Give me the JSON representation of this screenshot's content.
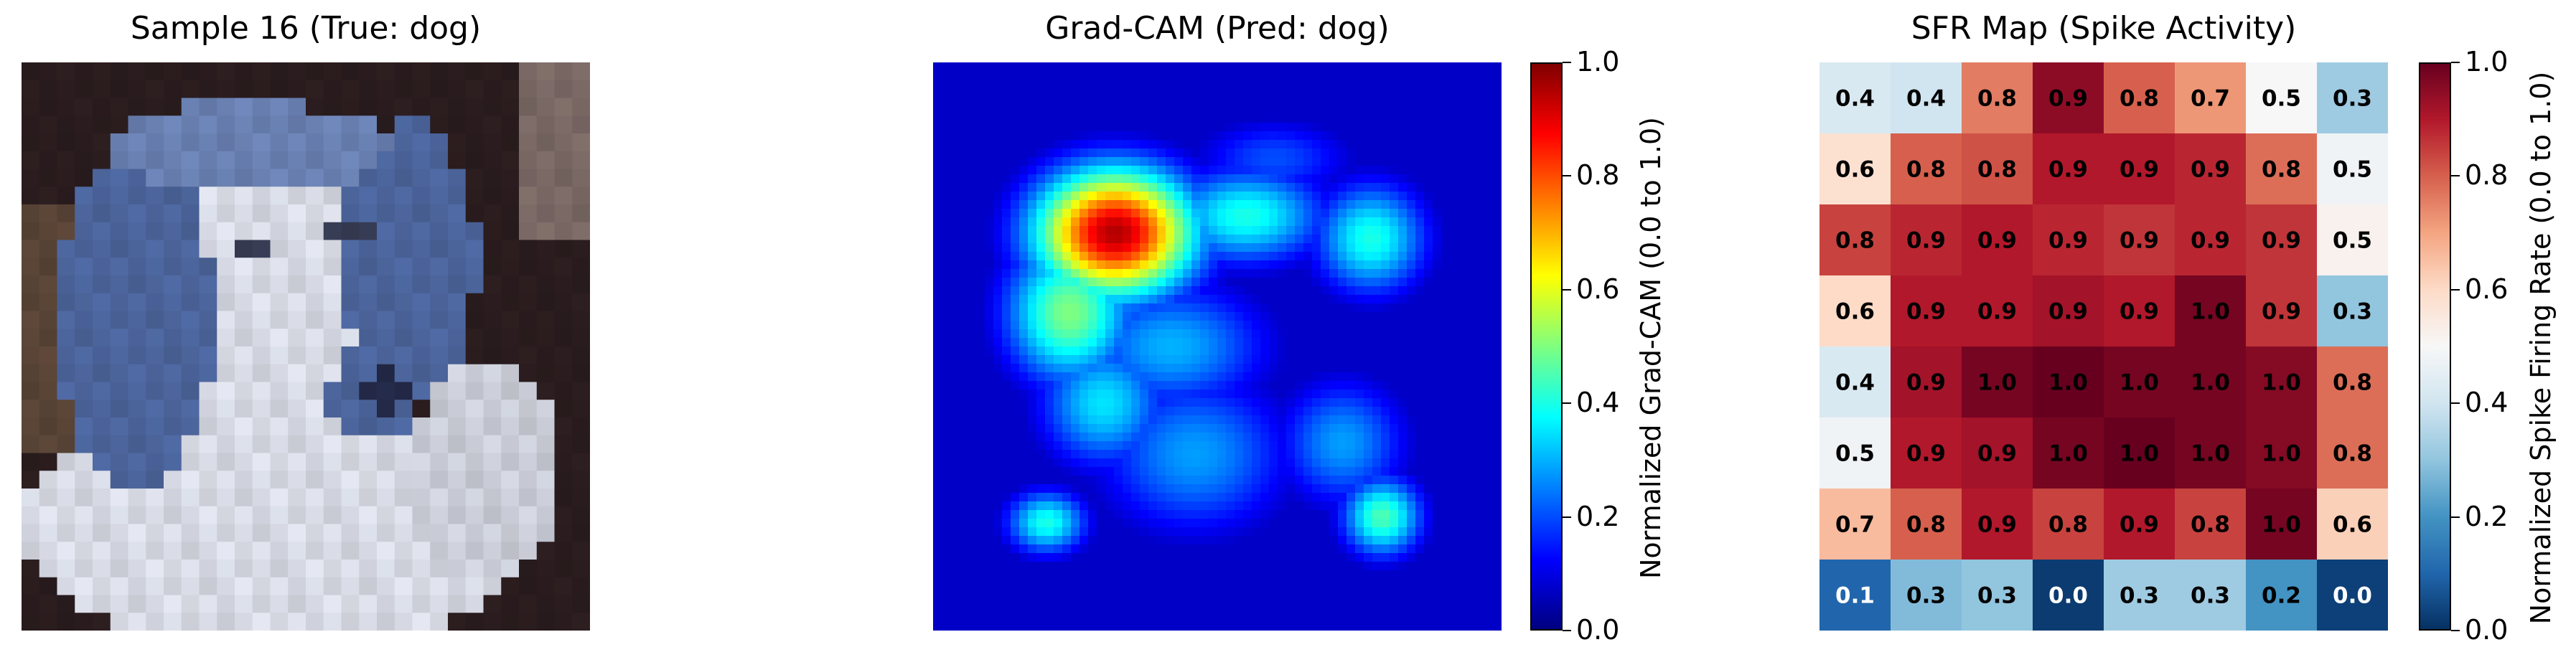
{
  "panels": {
    "sample": {
      "title": "Sample 16 (True: dog)"
    },
    "gradcam": {
      "title": "Grad-CAM (Pred: dog)",
      "colorbar_label": "Normalized Grad-CAM (0.0 to 1.0)"
    },
    "sfr": {
      "title": "SFR Map (Spike Activity)",
      "colorbar_label": "Normalized Spike Firing Rate (0.0 to 1.0)"
    }
  },
  "colorbar_ticks": [
    "0.0",
    "0.2",
    "0.4",
    "0.6",
    "0.8",
    "1.0"
  ],
  "colors": {
    "jet": [
      "#00007f",
      "#0000ff",
      "#007fff",
      "#00ffff",
      "#7fff7f",
      "#ffff00",
      "#ff7f00",
      "#ff0000",
      "#7f0000"
    ],
    "rdbu_r": [
      "#053061",
      "#2166ac",
      "#4393c3",
      "#92c5de",
      "#d1e5f0",
      "#f7f7f7",
      "#fddbc7",
      "#f4a582",
      "#d6604d",
      "#b2182b",
      "#67001f"
    ]
  },
  "chart_data": [
    {
      "type": "heatmap",
      "title": "Sample 16 (True: dog)",
      "content": "32x32 pixel image of a dog"
    },
    {
      "type": "heatmap",
      "title": "Grad-CAM (Pred: dog)",
      "colorbar": {
        "label": "Normalized Grad-CAM (0.0 to 1.0)",
        "range": [
          0.0,
          1.0
        ],
        "colormap": "jet"
      },
      "hotspots": [
        {
          "cx": 0.32,
          "cy": 0.3,
          "sx": 0.1,
          "sy": 0.08,
          "v": 0.95
        },
        {
          "cx": 0.24,
          "cy": 0.44,
          "sx": 0.08,
          "sy": 0.09,
          "v": 0.5
        },
        {
          "cx": 0.55,
          "cy": 0.27,
          "sx": 0.1,
          "sy": 0.06,
          "v": 0.4
        },
        {
          "cx": 0.77,
          "cy": 0.31,
          "sx": 0.07,
          "sy": 0.07,
          "v": 0.4
        },
        {
          "cx": 0.42,
          "cy": 0.5,
          "sx": 0.12,
          "sy": 0.08,
          "v": 0.3
        },
        {
          "cx": 0.3,
          "cy": 0.6,
          "sx": 0.08,
          "sy": 0.08,
          "v": 0.35
        },
        {
          "cx": 0.46,
          "cy": 0.69,
          "sx": 0.12,
          "sy": 0.1,
          "v": 0.28
        },
        {
          "cx": 0.72,
          "cy": 0.67,
          "sx": 0.08,
          "sy": 0.08,
          "v": 0.28
        },
        {
          "cx": 0.2,
          "cy": 0.81,
          "sx": 0.05,
          "sy": 0.04,
          "v": 0.4
        },
        {
          "cx": 0.79,
          "cy": 0.8,
          "sx": 0.05,
          "sy": 0.05,
          "v": 0.45
        },
        {
          "cx": 0.6,
          "cy": 0.17,
          "sx": 0.1,
          "sy": 0.05,
          "v": 0.2
        }
      ]
    },
    {
      "type": "heatmap",
      "title": "SFR Map (Spike Activity)",
      "colorbar": {
        "label": "Normalized Spike Firing Rate (0.0 to 1.0)",
        "range": [
          0.0,
          1.0
        ],
        "colormap": "RdBu_r"
      },
      "values": [
        [
          0.4,
          0.4,
          0.8,
          0.9,
          0.8,
          0.7,
          0.5,
          0.3
        ],
        [
          0.6,
          0.8,
          0.8,
          0.9,
          0.9,
          0.9,
          0.8,
          0.5
        ],
        [
          0.8,
          0.9,
          0.9,
          0.9,
          0.9,
          0.9,
          0.9,
          0.5
        ],
        [
          0.6,
          0.9,
          0.9,
          0.9,
          0.9,
          1.0,
          0.9,
          0.3
        ],
        [
          0.4,
          0.9,
          1.0,
          1.0,
          1.0,
          1.0,
          1.0,
          0.8
        ],
        [
          0.5,
          0.9,
          0.9,
          1.0,
          1.0,
          1.0,
          1.0,
          0.8
        ],
        [
          0.7,
          0.8,
          0.9,
          0.8,
          0.9,
          0.8,
          1.0,
          0.6
        ],
        [
          0.1,
          0.3,
          0.3,
          0.0,
          0.3,
          0.3,
          0.2,
          0.0
        ]
      ],
      "shades": [
        [
          0.42,
          0.4,
          0.76,
          0.95,
          0.8,
          0.72,
          0.5,
          0.32
        ],
        [
          0.58,
          0.8,
          0.82,
          0.9,
          0.9,
          0.88,
          0.78,
          0.48
        ],
        [
          0.84,
          0.88,
          0.9,
          0.88,
          0.86,
          0.88,
          0.86,
          0.52
        ],
        [
          0.6,
          0.9,
          0.9,
          0.92,
          0.9,
          0.98,
          0.86,
          0.3
        ],
        [
          0.42,
          0.92,
          0.98,
          1.0,
          0.98,
          0.98,
          0.96,
          0.78
        ],
        [
          0.48,
          0.9,
          0.92,
          0.98,
          1.0,
          0.98,
          0.96,
          0.78
        ],
        [
          0.66,
          0.8,
          0.9,
          0.84,
          0.9,
          0.84,
          0.98,
          0.62
        ],
        [
          0.1,
          0.28,
          0.3,
          0.02,
          0.32,
          0.32,
          0.2,
          0.03
        ]
      ]
    }
  ]
}
